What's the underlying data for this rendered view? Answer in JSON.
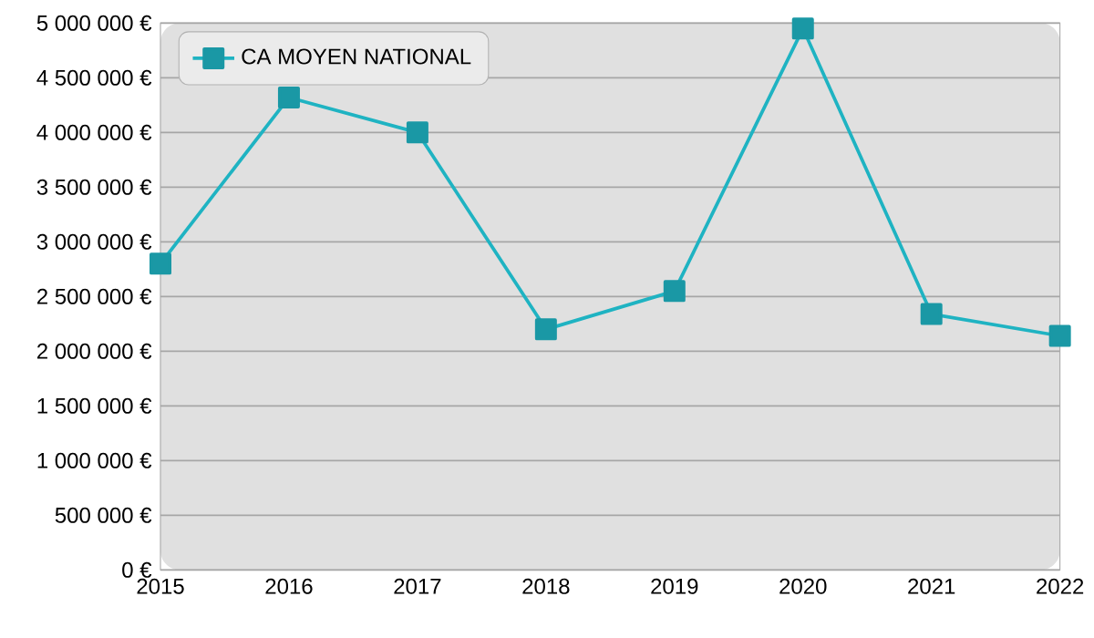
{
  "chart_data": {
    "type": "line",
    "x": [
      2015,
      2016,
      2017,
      2018,
      2019,
      2020,
      2021,
      2022
    ],
    "series": [
      {
        "name": "CA MOYEN NATIONAL",
        "color": "#1fb3c2",
        "values": [
          2800000,
          4320000,
          4000000,
          2200000,
          2550000,
          4950000,
          2340000,
          2140000
        ]
      }
    ],
    "xlim": [
      2015,
      2022
    ],
    "xticks": [
      2015,
      2016,
      2017,
      2018,
      2019,
      2020,
      2021,
      2022
    ],
    "ylim": [
      0,
      5000000
    ],
    "yticks": [
      {
        "value": 0,
        "label": "0 €"
      },
      {
        "value": 500000,
        "label": "500 000 €"
      },
      {
        "value": 1000000,
        "label": "1 000 000 €"
      },
      {
        "value": 1500000,
        "label": "1 500 000 €"
      },
      {
        "value": 2000000,
        "label": "2 000 000 €"
      },
      {
        "value": 2500000,
        "label": "2 500 000 €"
      },
      {
        "value": 3000000,
        "label": "3 000 000 €"
      },
      {
        "value": 3500000,
        "label": "3 500 000 €"
      },
      {
        "value": 4000000,
        "label": "4 000 000 €"
      },
      {
        "value": 4500000,
        "label": "4 500 000 €"
      },
      {
        "value": 5000000,
        "label": "5 000 000 €"
      }
    ],
    "grid": "y",
    "legend": "top left",
    "marker": "square",
    "line_style": "solid"
  }
}
